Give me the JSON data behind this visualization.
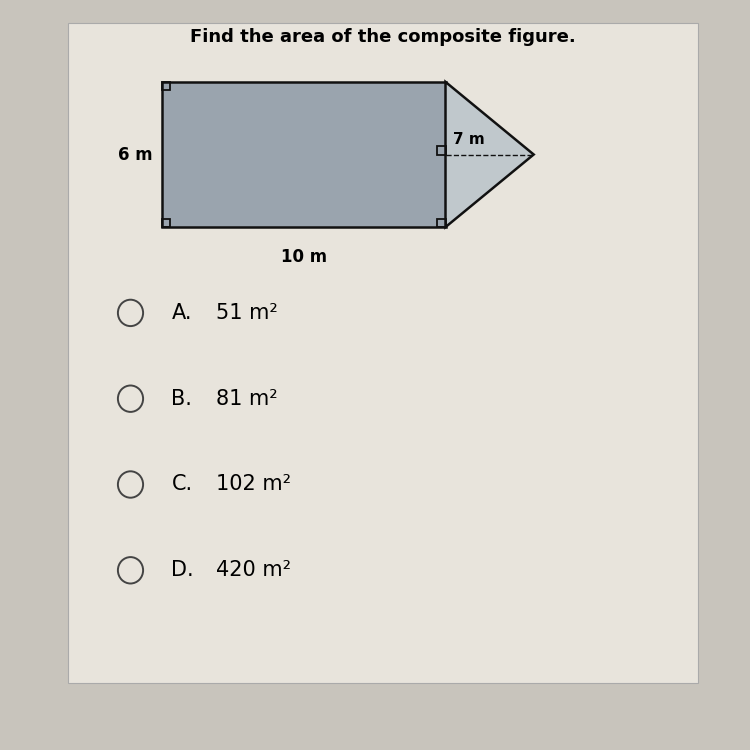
{
  "title": "Find the area of the composite figure.",
  "title_fontsize": 13,
  "title_fontweight": "bold",
  "bg_color": "#c8c4bc",
  "card_color": "#e8e4dc",
  "figure_fill": "#9aa4ae",
  "figure_edge": "#111111",
  "rect_label_left": "6 m",
  "rect_label_bottom": "10 m",
  "triangle_label": "7 m",
  "choices": [
    {
      "letter": "A.",
      "text": "51 m²"
    },
    {
      "letter": "B.",
      "text": "81 m²"
    },
    {
      "letter": "C.",
      "text": "102 m²"
    },
    {
      "letter": "D.",
      "text": "420 m²"
    }
  ],
  "choice_fontsize": 15,
  "label_fontsize": 12
}
